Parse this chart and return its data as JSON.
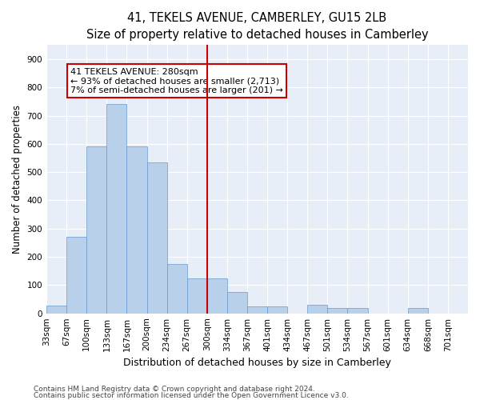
{
  "title": "41, TEKELS AVENUE, CAMBERLEY, GU15 2LB",
  "subtitle": "Size of property relative to detached houses in Camberley",
  "xlabel": "Distribution of detached houses by size in Camberley",
  "ylabel": "Number of detached properties",
  "bin_labels": [
    "33sqm",
    "67sqm",
    "100sqm",
    "133sqm",
    "167sqm",
    "200sqm",
    "234sqm",
    "267sqm",
    "300sqm",
    "334sqm",
    "367sqm",
    "401sqm",
    "434sqm",
    "467sqm",
    "501sqm",
    "534sqm",
    "567sqm",
    "601sqm",
    "634sqm",
    "668sqm",
    "701sqm"
  ],
  "bar_heights": [
    27,
    270,
    590,
    740,
    590,
    535,
    175,
    125,
    125,
    75,
    25,
    25,
    0,
    30,
    20,
    20,
    0,
    0,
    20,
    0,
    0
  ],
  "bar_color": "#b8d0ea",
  "bar_edge_color": "#6699cc",
  "highlight_line_color": "#cc0000",
  "annotation_text": "41 TEKELS AVENUE: 280sqm\n← 93% of detached houses are smaller (2,713)\n7% of semi-detached houses are larger (201) →",
  "annotation_box_edge_color": "#cc0000",
  "ylim": [
    0,
    950
  ],
  "yticks": [
    0,
    100,
    200,
    300,
    400,
    500,
    600,
    700,
    800,
    900
  ],
  "background_color": "#e8eef8",
  "grid_color": "#ffffff",
  "footnote1": "Contains HM Land Registry data © Crown copyright and database right 2024.",
  "footnote2": "Contains public sector information licensed under the Open Government Licence v3.0.",
  "title_fontsize": 10.5,
  "subtitle_fontsize": 9.5,
  "xlabel_fontsize": 9,
  "ylabel_fontsize": 8.5,
  "tick_fontsize": 7.5,
  "annotation_fontsize": 8,
  "footnote_fontsize": 6.5
}
